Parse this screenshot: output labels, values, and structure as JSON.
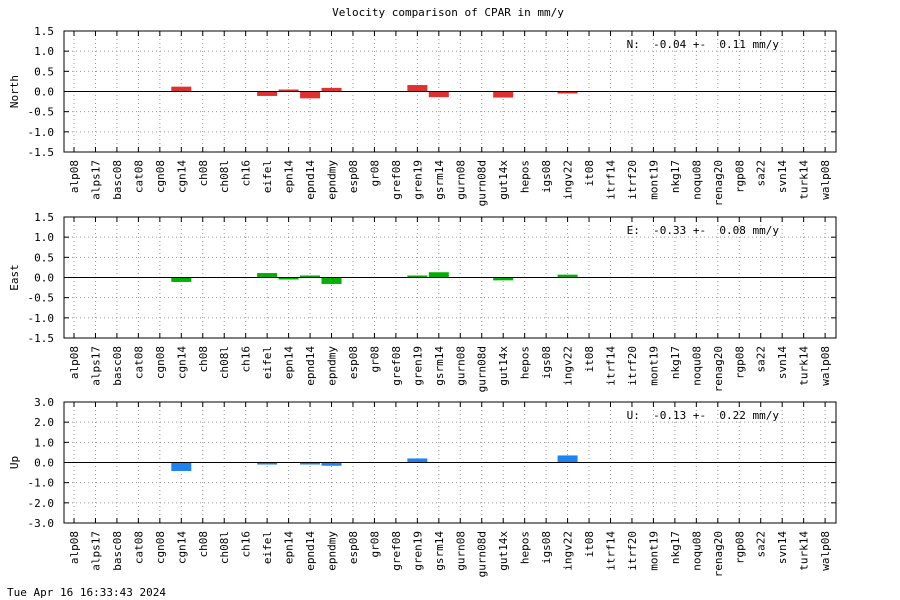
{
  "footer": "Tue Apr 16 16:33:43 2024",
  "chart_data": {
    "type": "bar",
    "title": "Velocity comparison of CPAR in mm/y",
    "categories": [
      "alp08",
      "alps17",
      "basc08",
      "cat08",
      "cgn08",
      "cgn14",
      "ch08",
      "ch08l",
      "ch16",
      "eifel",
      "epn14",
      "epnd14",
      "epndmy",
      "esp08",
      "gr08",
      "gref08",
      "gren19",
      "gsrm14",
      "gurn08",
      "gurn08d",
      "gut14x",
      "hepos",
      "igs08",
      "ingv22",
      "it08",
      "itrf14",
      "itrf20",
      "mont19",
      "nkg17",
      "noqu08",
      "renag20",
      "rgp08",
      "sa22",
      "svn14",
      "turk14",
      "walp08"
    ],
    "grid": true,
    "panels": [
      {
        "ylabel": "North",
        "annotation": "N:  -0.04 +-  0.11 mm/y",
        "color": "#e03030",
        "ylim": [
          -1.5,
          1.5
        ],
        "yticks": [
          -1.5,
          -1.0,
          -0.5,
          0.0,
          0.5,
          1.0,
          1.5
        ],
        "ytick_labels": [
          "-1.5",
          "-1.0",
          "-0.5",
          "0.0",
          "0.5",
          "1.0",
          "1.5"
        ],
        "values": [
          null,
          null,
          null,
          null,
          null,
          0.12,
          null,
          null,
          null,
          -0.11,
          0.02,
          -0.17,
          0.09,
          null,
          null,
          null,
          0.16,
          -0.14,
          null,
          null,
          -0.15,
          null,
          null,
          -0.04,
          null,
          null,
          null,
          null,
          null,
          null,
          null,
          null,
          null,
          null,
          null,
          null
        ]
      },
      {
        "ylabel": "East",
        "annotation": "E:  -0.33 +-  0.08 mm/y",
        "color": "#00b000",
        "ylim": [
          -1.5,
          1.5
        ],
        "yticks": [
          -1.5,
          -1.0,
          -0.5,
          0.0,
          0.5,
          1.0,
          1.5
        ],
        "ytick_labels": [
          "-1.5",
          "-1.0",
          "-0.5",
          "0.0",
          "0.5",
          "1.0",
          "1.5"
        ],
        "values": [
          null,
          null,
          null,
          null,
          null,
          -0.11,
          null,
          null,
          null,
          0.11,
          -0.03,
          0.05,
          -0.16,
          null,
          null,
          null,
          0.02,
          0.13,
          null,
          null,
          -0.07,
          null,
          null,
          0.07,
          null,
          null,
          null,
          null,
          null,
          null,
          null,
          null,
          null,
          null,
          null,
          null
        ]
      },
      {
        "ylabel": "Up",
        "annotation": "U:  -0.13 +-  0.22 mm/y",
        "color": "#1e82f0",
        "ylim": [
          -3.0,
          3.0
        ],
        "yticks": [
          -3.0,
          -2.0,
          -1.0,
          0.0,
          1.0,
          2.0,
          3.0
        ],
        "ytick_labels": [
          "-3.0",
          "-2.0",
          "-1.0",
          "0.0",
          "1.0",
          "2.0",
          "3.0"
        ],
        "values": [
          null,
          null,
          null,
          null,
          null,
          -0.42,
          null,
          null,
          null,
          -0.06,
          null,
          -0.06,
          -0.16,
          null,
          null,
          null,
          0.2,
          null,
          null,
          null,
          null,
          null,
          null,
          0.35,
          null,
          null,
          null,
          null,
          null,
          null,
          null,
          null,
          null,
          null,
          null,
          null
        ]
      }
    ]
  }
}
